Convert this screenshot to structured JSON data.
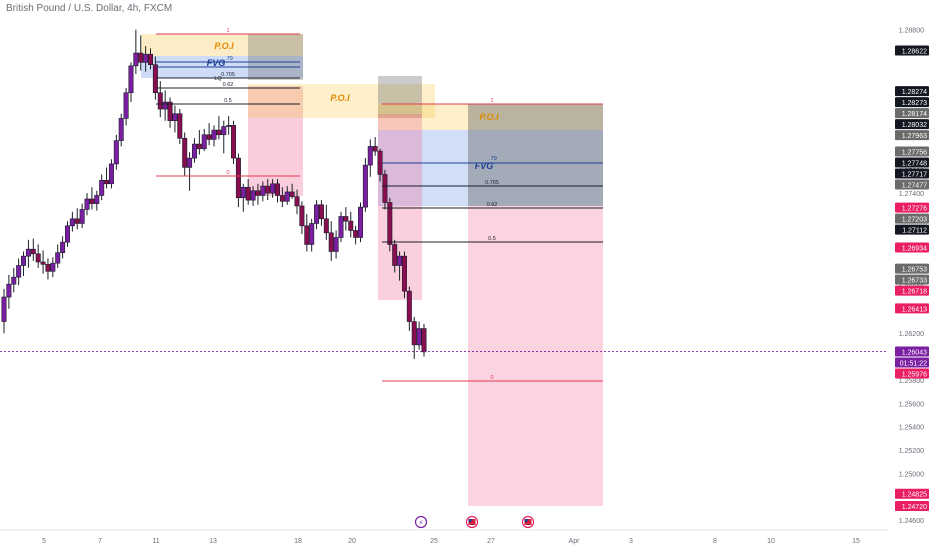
{
  "header": {
    "title": "British Pound / U.S. Dollar, 4h, FXCM"
  },
  "colors": {
    "bull": "#ffffff",
    "bear": "#880e4f",
    "bull_body": "#7b1fa2",
    "wick": "#1b1f2a",
    "poi": "#f4c542",
    "fvg": "#5c8ae6",
    "gray": "#6b6b6b",
    "red_zone": "#f06292",
    "red_line": "#e53950",
    "accent_label": "#e91e63",
    "dark_label": "#131722"
  },
  "chart_data": {
    "type": "candlestick",
    "title": "British Pound / U.S. Dollar, 4h, FXCM",
    "ylim": [
      1.246,
      1.289
    ],
    "y_ticks": [
      "1.28800",
      "1.27600",
      "1.27400",
      "1.26600",
      "1.26200",
      "1.25800",
      "1.25600",
      "1.25400",
      "1.25200",
      "1.25000",
      "1.24600"
    ],
    "x_ticks": [
      "5",
      "7",
      "11",
      "13",
      "18",
      "20",
      "25",
      "27",
      "Apr",
      "3",
      "8",
      "10",
      "15"
    ],
    "price_labels": [
      {
        "text": "1.28622",
        "v": 1.28622,
        "style": "dark"
      },
      {
        "text": "1.28274",
        "v": 1.28274,
        "style": "dark"
      },
      {
        "text": "1.28273",
        "v": 1.28273,
        "style": "dark"
      },
      {
        "text": "1.28174",
        "v": 1.28174,
        "style": "gray"
      },
      {
        "text": "1.28032",
        "v": 1.28032,
        "style": "dark"
      },
      {
        "text": "1.27963",
        "v": 1.27963,
        "style": "gray"
      },
      {
        "text": "1.27756",
        "v": 1.27756,
        "style": "gray"
      },
      {
        "text": "1.27748",
        "v": 1.27748,
        "style": "dark"
      },
      {
        "text": "1.27717",
        "v": 1.27717,
        "style": "dark"
      },
      {
        "text": "1.27477",
        "v": 1.27477,
        "style": "gray"
      },
      {
        "text": "1.27276",
        "v": 1.27276,
        "style": "pink"
      },
      {
        "text": "1.27203",
        "v": 1.27203,
        "style": "gray"
      },
      {
        "text": "1.27112",
        "v": 1.27112,
        "style": "dark"
      },
      {
        "text": "1.26934",
        "v": 1.26934,
        "style": "pink"
      },
      {
        "text": "1.26753",
        "v": 1.26753,
        "style": "gray"
      },
      {
        "text": "1.26733",
        "v": 1.26733,
        "style": "gray"
      },
      {
        "text": "1.26718",
        "v": 1.26718,
        "style": "pink"
      },
      {
        "text": "1.26413",
        "v": 1.26413,
        "style": "pink"
      },
      {
        "text": "1.26043",
        "v": 1.26043,
        "style": "purple"
      },
      {
        "text": "01:51:22",
        "v": 1.26043,
        "style": "purple"
      },
      {
        "text": "1.25976",
        "v": 1.25976,
        "style": "pink"
      },
      {
        "text": "1.24825",
        "v": 1.24825,
        "style": "pink"
      },
      {
        "text": "1.24720",
        "v": 1.2472,
        "style": "pink"
      }
    ],
    "current_price": 1.26043,
    "annotations": [
      "P.O.I",
      "FVG",
      "P.O.I",
      "FVG",
      "P.O.I",
      "0.705",
      "0.62",
      "0.5",
      "0",
      "1",
      ".79",
      "LQ"
    ],
    "event_icons": [
      "lightning",
      "us-flag",
      "us-flag"
    ],
    "candles": [
      [
        1.263,
        1.2658,
        1.262,
        1.2651
      ],
      [
        1.2651,
        1.267,
        1.2641,
        1.2662
      ],
      [
        1.2662,
        1.2676,
        1.2655,
        1.2668
      ],
      [
        1.2668,
        1.2684,
        1.2661,
        1.2678
      ],
      [
        1.2678,
        1.269,
        1.2669,
        1.2686
      ],
      [
        1.2686,
        1.27,
        1.2676,
        1.2692
      ],
      [
        1.2692,
        1.2701,
        1.2682,
        1.2688
      ],
      [
        1.2688,
        1.2696,
        1.2676,
        1.2681
      ],
      [
        1.2681,
        1.2691,
        1.2671,
        1.2679
      ],
      [
        1.2679,
        1.2684,
        1.2666,
        1.2673
      ],
      [
        1.2673,
        1.2685,
        1.2668,
        1.268
      ],
      [
        1.268,
        1.2696,
        1.2676,
        1.2689
      ],
      [
        1.2689,
        1.2703,
        1.2684,
        1.2698
      ],
      [
        1.2698,
        1.2716,
        1.2694,
        1.2712
      ],
      [
        1.2712,
        1.2724,
        1.2707,
        1.2718
      ],
      [
        1.2718,
        1.2727,
        1.2709,
        1.2714
      ],
      [
        1.2714,
        1.2731,
        1.271,
        1.2726
      ],
      [
        1.2726,
        1.274,
        1.2721,
        1.2735
      ],
      [
        1.2735,
        1.2745,
        1.2726,
        1.2731
      ],
      [
        1.2731,
        1.2742,
        1.2725,
        1.2738
      ],
      [
        1.2738,
        1.2756,
        1.2734,
        1.2751
      ],
      [
        1.2751,
        1.2762,
        1.2744,
        1.2748
      ],
      [
        1.2748,
        1.2769,
        1.2744,
        1.2765
      ],
      [
        1.2765,
        1.279,
        1.276,
        1.2785
      ],
      [
        1.2785,
        1.2808,
        1.278,
        1.2804
      ],
      [
        1.2804,
        1.283,
        1.2798,
        1.2826
      ],
      [
        1.2826,
        1.2852,
        1.2818,
        1.2849
      ],
      [
        1.2849,
        1.288,
        1.2842,
        1.286
      ],
      [
        1.286,
        1.2875,
        1.2845,
        1.2852
      ],
      [
        1.2852,
        1.2866,
        1.2844,
        1.2859
      ],
      [
        1.2859,
        1.2864,
        1.2846,
        1.285
      ],
      [
        1.285,
        1.2857,
        1.282,
        1.2826
      ],
      [
        1.2826,
        1.2836,
        1.2805,
        1.2812
      ],
      [
        1.2812,
        1.2828,
        1.2802,
        1.2818
      ],
      [
        1.2818,
        1.2822,
        1.2796,
        1.2802
      ],
      [
        1.2802,
        1.2815,
        1.2792,
        1.2808
      ],
      [
        1.2808,
        1.2812,
        1.2782,
        1.2787
      ],
      [
        1.2787,
        1.2792,
        1.2755,
        1.2762
      ],
      [
        1.2762,
        1.2775,
        1.2742,
        1.277
      ],
      [
        1.277,
        1.2787,
        1.2766,
        1.2782
      ],
      [
        1.2782,
        1.2794,
        1.2773,
        1.2778
      ],
      [
        1.2778,
        1.2795,
        1.2776,
        1.279
      ],
      [
        1.279,
        1.28,
        1.2781,
        1.2786
      ],
      [
        1.2786,
        1.2798,
        1.278,
        1.2794
      ],
      [
        1.2794,
        1.2806,
        1.2786,
        1.279
      ],
      [
        1.279,
        1.2802,
        1.2774,
        1.2797
      ],
      [
        1.2797,
        1.2806,
        1.279,
        1.2798
      ],
      [
        1.2798,
        1.2802,
        1.2765,
        1.277
      ],
      [
        1.277,
        1.2774,
        1.2728,
        1.2736
      ],
      [
        1.2736,
        1.2748,
        1.2724,
        1.2745
      ],
      [
        1.2745,
        1.2752,
        1.273,
        1.2734
      ],
      [
        1.2734,
        1.2746,
        1.2729,
        1.2742
      ],
      [
        1.2742,
        1.2748,
        1.273,
        1.2738
      ],
      [
        1.2738,
        1.275,
        1.2733,
        1.2746
      ],
      [
        1.2746,
        1.2752,
        1.2734,
        1.274
      ],
      [
        1.274,
        1.2752,
        1.2736,
        1.2748
      ],
      [
        1.2748,
        1.2752,
        1.2732,
        1.2738
      ],
      [
        1.2738,
        1.2745,
        1.2728,
        1.2733
      ],
      [
        1.2733,
        1.2746,
        1.273,
        1.2741
      ],
      [
        1.2741,
        1.2748,
        1.2735,
        1.2737
      ],
      [
        1.2737,
        1.2743,
        1.2722,
        1.2729
      ],
      [
        1.2729,
        1.2733,
        1.2705,
        1.2712
      ],
      [
        1.2712,
        1.2722,
        1.269,
        1.2696
      ],
      [
        1.2696,
        1.2718,
        1.269,
        1.2714
      ],
      [
        1.2714,
        1.2734,
        1.2709,
        1.273
      ],
      [
        1.273,
        1.2734,
        1.2712,
        1.2718
      ],
      [
        1.2718,
        1.273,
        1.27,
        1.2706
      ],
      [
        1.2706,
        1.2716,
        1.2682,
        1.269
      ],
      [
        1.269,
        1.2708,
        1.2684,
        1.2702
      ],
      [
        1.2702,
        1.2724,
        1.2698,
        1.272
      ],
      [
        1.272,
        1.2728,
        1.2708,
        1.2716
      ],
      [
        1.2716,
        1.2724,
        1.2702,
        1.2708
      ],
      [
        1.2708,
        1.2712,
        1.2696,
        1.2702
      ],
      [
        1.2702,
        1.2732,
        1.2698,
        1.2728
      ],
      [
        1.2728,
        1.277,
        1.2724,
        1.2764
      ],
      [
        1.2764,
        1.2786,
        1.2754,
        1.278
      ],
      [
        1.278,
        1.2788,
        1.2772,
        1.2776
      ],
      [
        1.2776,
        1.2778,
        1.275,
        1.2756
      ],
      [
        1.2756,
        1.276,
        1.2726,
        1.2732
      ],
      [
        1.2732,
        1.2736,
        1.269,
        1.2696
      ],
      [
        1.2696,
        1.27,
        1.2672,
        1.2678
      ],
      [
        1.2678,
        1.269,
        1.2665,
        1.2686
      ],
      [
        1.2686,
        1.269,
        1.265,
        1.2656
      ],
      [
        1.2656,
        1.266,
        1.2622,
        1.263
      ],
      [
        1.263,
        1.2634,
        1.2598,
        1.261
      ],
      [
        1.261,
        1.263,
        1.2606,
        1.2624
      ],
      [
        1.2624,
        1.2628,
        1.26,
        1.2604
      ]
    ]
  }
}
